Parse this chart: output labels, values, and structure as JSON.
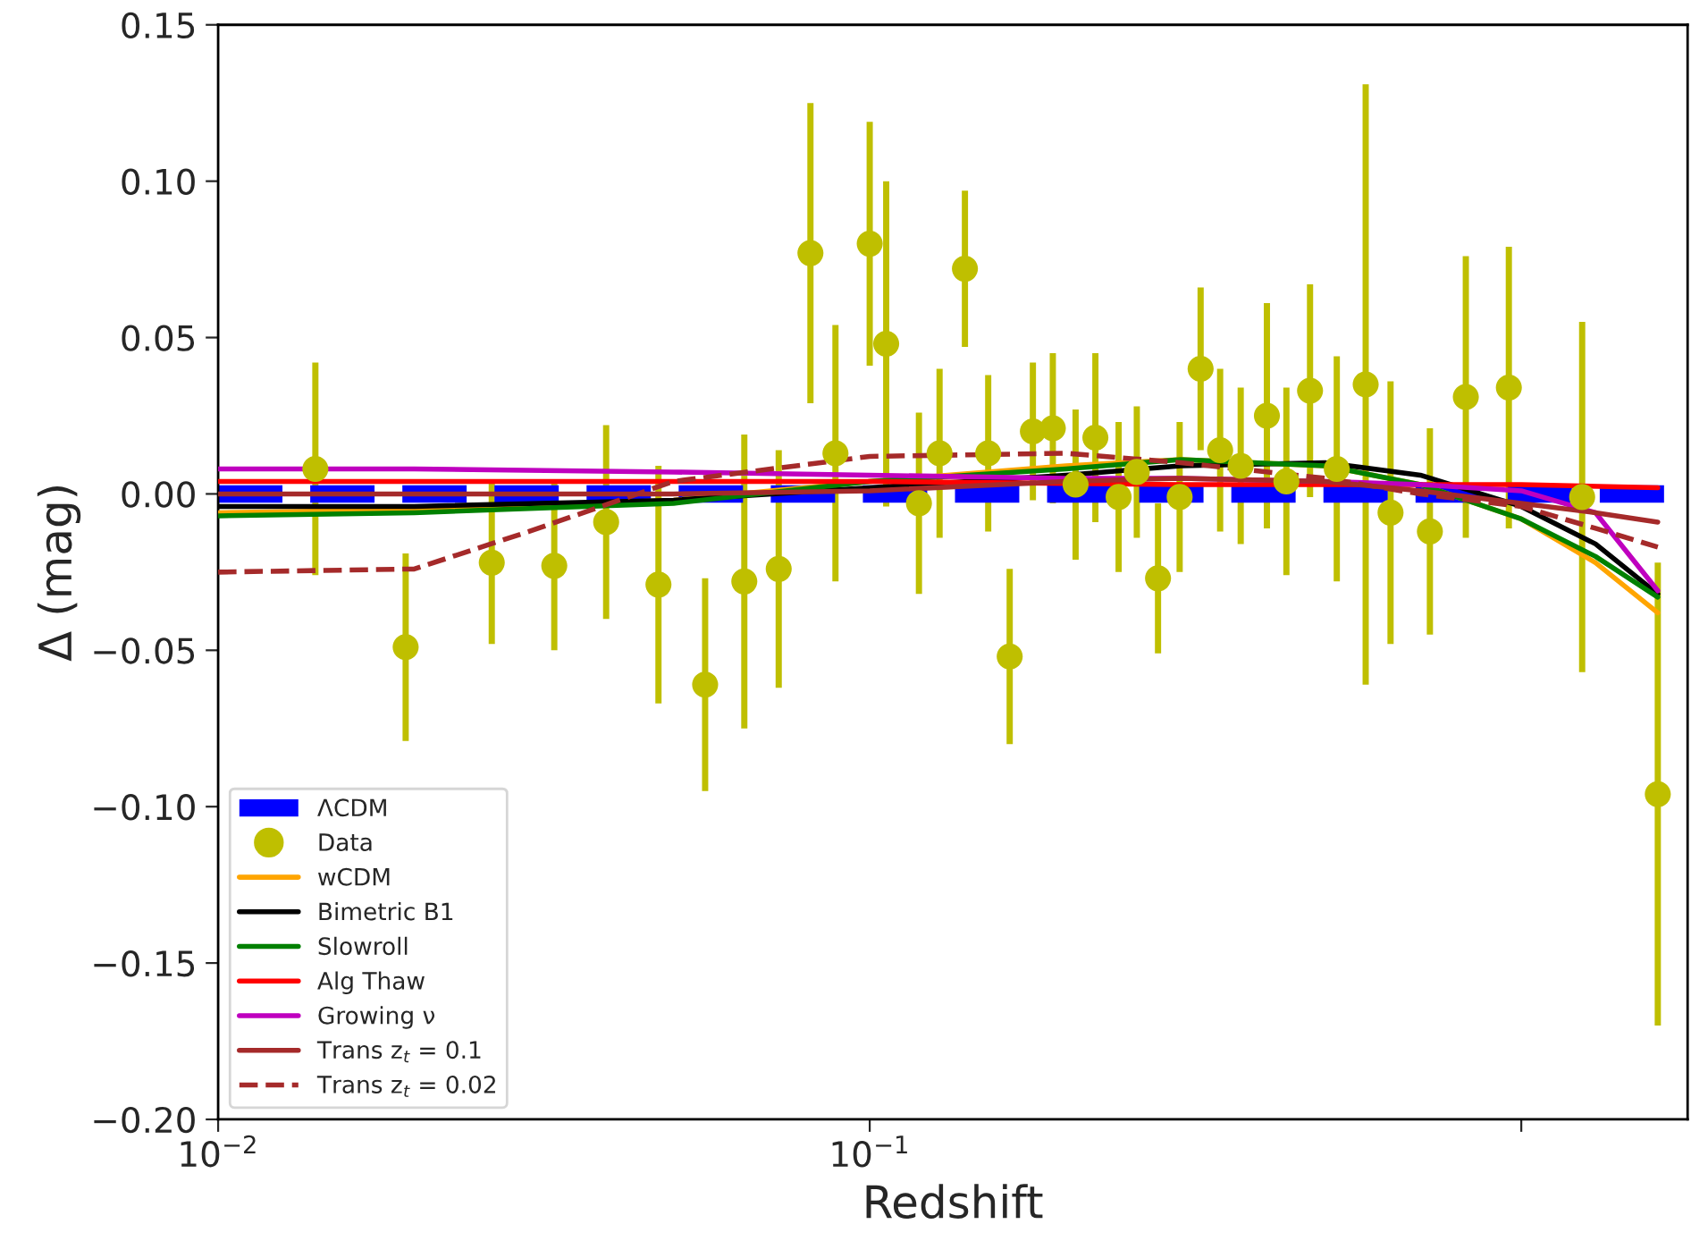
{
  "chart_data": {
    "type": "line",
    "xlabel": "Redshift",
    "ylabel": "Δ (mag)",
    "log": "x",
    "grid": false,
    "legend": "bottom left",
    "xlim": [
      0.01,
      1.8
    ],
    "xticks": [
      {
        "value": 0.01,
        "label": "10$^{−2}$"
      },
      {
        "value": 0.1,
        "label": "10$^{−1}$"
      },
      {
        "value": 1,
        "label": null
      }
    ],
    "ylim": [
      -0.2,
      0.15
    ],
    "yticks": [
      {
        "value": -0.2,
        "label": "−0.20"
      },
      {
        "value": -0.15,
        "label": "−0.15"
      },
      {
        "value": -0.1,
        "label": "−0.10"
      },
      {
        "value": -0.05,
        "label": "−0.05"
      },
      {
        "value": 0,
        "label": "0.00"
      },
      {
        "value": 0.05,
        "label": "0.05"
      },
      {
        "value": 0.1,
        "label": "0.10"
      },
      {
        "value": 0.15,
        "label": "0.15"
      }
    ],
    "series": [
      {
        "name": "ΛCDM",
        "line_style": "dashed",
        "color": "#0000ff",
        "x": [
          0.01,
          1.8
        ],
        "values": [
          0,
          0
        ]
      },
      {
        "name": "Data",
        "type": "scatter",
        "marker": "circle",
        "color": "#bfbf00",
        "x": [
          0.0141,
          0.0194,
          0.0263,
          0.0328,
          0.0394,
          0.0474,
          0.0559,
          0.0642,
          0.0725,
          0.0811,
          0.0886,
          0.1,
          0.106,
          0.119,
          0.128,
          0.14,
          0.152,
          0.164,
          0.178,
          0.191,
          0.207,
          0.222,
          0.241,
          0.257,
          0.277,
          0.299,
          0.322,
          0.345,
          0.371,
          0.407,
          0.436,
          0.474,
          0.521,
          0.577,
          0.63,
          0.724,
          0.822,
          0.957,
          1.24,
          1.62
        ],
        "values": [
          0.008,
          -0.049,
          -0.022,
          -0.023,
          -0.009,
          -0.029,
          -0.061,
          -0.028,
          -0.024,
          0.077,
          0.013,
          0.08,
          0.048,
          -0.003,
          0.013,
          0.072,
          0.013,
          -0.052,
          0.02,
          0.021,
          0.003,
          0.018,
          -0.001,
          0.007,
          -0.027,
          -0.001,
          0.04,
          0.014,
          0.009,
          0.025,
          0.004,
          0.033,
          0.008,
          0.035,
          -0.006,
          -0.012,
          0.031,
          0.034,
          -0.001,
          -0.096
        ],
        "errors": [
          0.034,
          0.03,
          0.026,
          0.027,
          0.031,
          0.038,
          0.034,
          0.047,
          0.038,
          0.048,
          0.041,
          0.039,
          0.052,
          0.029,
          0.027,
          0.025,
          0.025,
          0.028,
          0.022,
          0.024,
          0.024,
          0.027,
          0.024,
          0.021,
          0.024,
          0.024,
          0.026,
          0.026,
          0.025,
          0.036,
          0.03,
          0.034,
          0.036,
          0.096,
          0.042,
          0.033,
          0.045,
          0.045,
          0.056,
          0.074
        ]
      },
      {
        "name": "wCDM",
        "line_style": "solid",
        "color": "#ffa500",
        "x": [
          0.01,
          0.02,
          0.05,
          0.1,
          0.2,
          0.3,
          0.5,
          0.7,
          1.0,
          1.3,
          1.62
        ],
        "values": [
          -0.006,
          -0.005,
          -0.002,
          0.004,
          0.009,
          0.011,
          0.009,
          0.003,
          -0.008,
          -0.022,
          -0.038
        ]
      },
      {
        "name": "Bimetric B1",
        "line_style": "solid",
        "color": "#000000",
        "x": [
          0.01,
          0.02,
          0.05,
          0.1,
          0.2,
          0.3,
          0.5,
          0.7,
          1.0,
          1.3,
          1.62
        ],
        "values": [
          -0.004,
          -0.004,
          -0.002,
          0.002,
          0.006,
          0.009,
          0.01,
          0.006,
          -0.004,
          -0.016,
          -0.032
        ]
      },
      {
        "name": "Slowroll",
        "line_style": "solid",
        "color": "#008000",
        "x": [
          0.01,
          0.02,
          0.05,
          0.1,
          0.2,
          0.3,
          0.5,
          0.7,
          1.0,
          1.3,
          1.62
        ],
        "values": [
          -0.007,
          -0.006,
          -0.003,
          0.004,
          0.008,
          0.011,
          0.009,
          0.003,
          -0.008,
          -0.02,
          -0.033
        ]
      },
      {
        "name": "Alg Thaw",
        "line_style": "solid",
        "color": "#ff0000",
        "x": [
          0.01,
          0.1,
          0.3,
          1.0,
          1.62
        ],
        "values": [
          0.004,
          0.004,
          0.003,
          0.003,
          0.002
        ]
      },
      {
        "name": "Growing ν",
        "line_style": "solid",
        "color": "#bf00bf",
        "x": [
          0.01,
          0.02,
          0.05,
          0.1,
          0.2,
          0.3,
          0.5,
          0.7,
          1.0,
          1.3,
          1.62
        ],
        "values": [
          0.008,
          0.008,
          0.007,
          0.006,
          0.005,
          0.005,
          0.004,
          0.003,
          0.001,
          -0.006,
          -0.031
        ]
      },
      {
        "name": "Trans z$_{t}$ = 0.1",
        "line_style": "solid",
        "color": "#a52a2a",
        "x": [
          0.01,
          0.02,
          0.05,
          0.1,
          0.2,
          0.3,
          0.5,
          0.7,
          1.0,
          1.3,
          1.62
        ],
        "values": [
          0.0,
          0.0,
          0.0,
          0.001,
          0.004,
          0.005,
          0.004,
          0.001,
          -0.003,
          -0.006,
          -0.009
        ]
      },
      {
        "name": "Trans z$_{t}$ = 0.02",
        "line_style": "dashed",
        "color": "#a52a2a",
        "x": [
          0.01,
          0.02,
          0.03,
          0.05,
          0.1,
          0.2,
          0.3,
          0.5,
          0.7,
          1.0,
          1.3,
          1.62
        ],
        "values": [
          -0.025,
          -0.024,
          -0.012,
          0.004,
          0.012,
          0.013,
          0.01,
          0.005,
          0.0,
          -0.004,
          -0.011,
          -0.017
        ]
      }
    ]
  }
}
